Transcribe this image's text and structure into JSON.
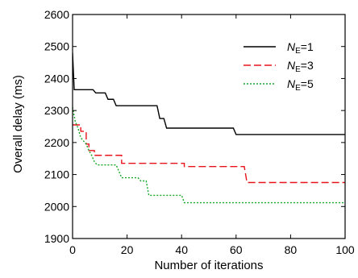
{
  "chart_data": {
    "type": "line",
    "title": "",
    "xlabel": "Number of iterations",
    "ylabel": "Overall delay (ms)",
    "xlim": [
      0,
      100
    ],
    "ylim": [
      1900,
      2600
    ],
    "xticks": [
      0,
      20,
      40,
      60,
      80,
      100
    ],
    "yticks": [
      1900,
      2000,
      2100,
      2200,
      2300,
      2400,
      2500,
      2600
    ],
    "grid": false,
    "legend_position": "top-right",
    "series": [
      {
        "name_main": "N",
        "name_sub": "E",
        "name_suffix": "=1",
        "color": "#000000",
        "dash": "solid",
        "points": [
          [
            0,
            2480
          ],
          [
            0.6,
            2365
          ],
          [
            7.5,
            2365
          ],
          [
            8.5,
            2355
          ],
          [
            12,
            2355
          ],
          [
            13,
            2335
          ],
          [
            15,
            2335
          ],
          [
            16,
            2315
          ],
          [
            31,
            2315
          ],
          [
            32,
            2275
          ],
          [
            33.5,
            2275
          ],
          [
            34.5,
            2245
          ],
          [
            59,
            2245
          ],
          [
            60,
            2225
          ],
          [
            100,
            2225
          ]
        ]
      },
      {
        "name_main": "N",
        "name_sub": "E",
        "name_suffix": "=3",
        "color": "#e8131b",
        "dash": "dashed",
        "points": [
          [
            0,
            2255
          ],
          [
            3,
            2255
          ],
          [
            3,
            2235
          ],
          [
            5,
            2235
          ],
          [
            5,
            2195
          ],
          [
            6,
            2195
          ],
          [
            6,
            2175
          ],
          [
            8,
            2175
          ],
          [
            8,
            2160
          ],
          [
            18,
            2160
          ],
          [
            18,
            2135
          ],
          [
            41,
            2135
          ],
          [
            41,
            2125
          ],
          [
            63,
            2125
          ],
          [
            64,
            2075
          ],
          [
            100,
            2075
          ]
        ]
      },
      {
        "name_main": "N",
        "name_sub": "E",
        "name_suffix": "=5",
        "color": "#16a829",
        "dash": "dotted",
        "points": [
          [
            0,
            2310
          ],
          [
            1,
            2265
          ],
          [
            2,
            2245
          ],
          [
            3,
            2215
          ],
          [
            5,
            2195
          ],
          [
            6,
            2175
          ],
          [
            7,
            2160
          ],
          [
            8,
            2140
          ],
          [
            9,
            2130
          ],
          [
            16,
            2130
          ],
          [
            17,
            2110
          ],
          [
            18,
            2090
          ],
          [
            24,
            2090
          ],
          [
            25,
            2080
          ],
          [
            27,
            2080
          ],
          [
            28,
            2035
          ],
          [
            40,
            2035
          ],
          [
            41,
            2012
          ],
          [
            100,
            2012
          ]
        ]
      }
    ]
  }
}
